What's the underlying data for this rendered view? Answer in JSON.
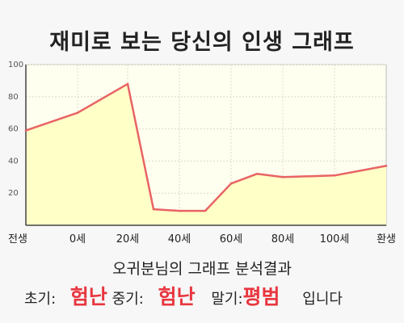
{
  "title": "재미로 보는 당신의 인생 그래프",
  "subtitle": "오귀분님의 그래프 분석결과",
  "result": {
    "early_label": "초기:",
    "early_value": "험난",
    "mid_label": "중기:",
    "mid_value": "험난",
    "late_label": "말기:",
    "late_value": "평범",
    "suffix": "입니다"
  },
  "colors": {
    "line": "#e86464",
    "fill": "#ffffc8",
    "plot_bg": "#fffff0",
    "result_value": "#e8363f"
  },
  "chart_data": {
    "type": "area",
    "title": "재미로 보는 당신의 인생 그래프",
    "xlabel": "",
    "ylabel": "",
    "ylim": [
      0,
      100
    ],
    "yticks": [
      20,
      40,
      60,
      80,
      100
    ],
    "x_tick_labels": [
      "전생",
      "0세",
      "20세",
      "40세",
      "60세",
      "80세",
      "100세",
      "환생"
    ],
    "grid": true,
    "series": [
      {
        "x": [
          "전생",
          "0세",
          "20세",
          "30세",
          "40세",
          "50세",
          "60세",
          "70세",
          "80세",
          "100세",
          "환생"
        ],
        "values": [
          59,
          70,
          88,
          10,
          9,
          9,
          26,
          32,
          30,
          31,
          37
        ]
      }
    ]
  }
}
